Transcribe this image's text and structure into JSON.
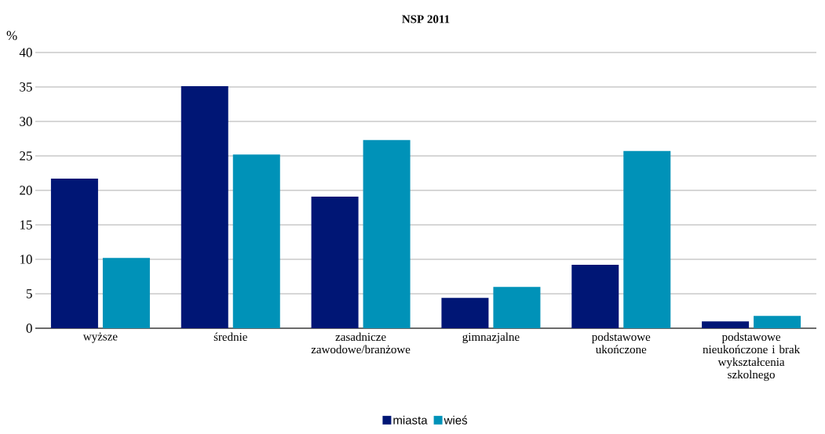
{
  "chart_data": {
    "type": "bar",
    "title": "NSP 2011",
    "ylabel": "%",
    "categories": [
      "wyższe",
      "średnie",
      "zasadnicze zawodowe/branżowe",
      "gimnazjalne",
      "podstawowe ukończone",
      "podstawowe nieukończone i brak wykształcenia szkolnego"
    ],
    "series": [
      {
        "name": "miasta",
        "color": "#001675",
        "values": [
          21.7,
          35.1,
          19.1,
          4.4,
          9.2,
          1.0
        ]
      },
      {
        "name": "wieś",
        "color": "#0092b8",
        "values": [
          10.2,
          25.2,
          27.3,
          6.0,
          25.7,
          1.8
        ]
      }
    ],
    "ylim": [
      0,
      40
    ],
    "yticks": [
      0,
      5,
      10,
      15,
      20,
      25,
      30,
      35,
      40
    ],
    "grid": "y",
    "legend": "bottom"
  }
}
